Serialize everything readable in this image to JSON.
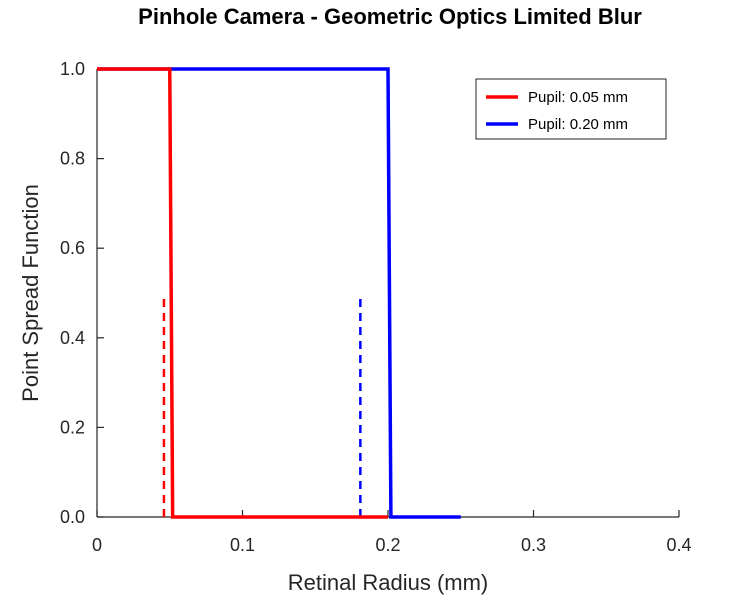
{
  "chart_data": {
    "type": "line",
    "title": "Pinhole Camera - Geometric Optics Limited Blur",
    "xlabel": "Retinal Radius (mm)",
    "ylabel": "Point Spread Function",
    "xlim": [
      0,
      0.4
    ],
    "ylim": [
      0,
      1
    ],
    "x_ticks": [
      0,
      0.1,
      0.2,
      0.3,
      0.4
    ],
    "x_tick_labels": [
      "0",
      "0.1",
      "0.2",
      "0.3",
      "0.4"
    ],
    "y_ticks": [
      0,
      0.2,
      0.4,
      0.6,
      0.8,
      1.0
    ],
    "y_tick_labels": [
      "0.0",
      "0.2",
      "0.4",
      "0.6",
      "0.8",
      "1.0"
    ],
    "grid": false,
    "legend_position": "top-right",
    "series": [
      {
        "name": "Pupil: 0.05 mm",
        "color": "#ff0000",
        "style": "solid",
        "x": [
          0,
          0.05,
          0.052,
          0.2
        ],
        "y": [
          1,
          1,
          0,
          0
        ]
      },
      {
        "name": "Pupil: 0.20 mm",
        "color": "#0000ff",
        "style": "solid",
        "x": [
          0,
          0.2,
          0.202,
          0.25
        ],
        "y": [
          1,
          1,
          0,
          0
        ]
      }
    ],
    "reference_lines": [
      {
        "series": "Pupil: 0.05 mm",
        "color": "#ff0000",
        "style": "dashed",
        "x": 0.046,
        "y_range": [
          0,
          0.5
        ]
      },
      {
        "series": "Pupil: 0.20 mm",
        "color": "#0000ff",
        "style": "dashed",
        "x": 0.181,
        "y_range": [
          0,
          0.5
        ]
      }
    ]
  }
}
